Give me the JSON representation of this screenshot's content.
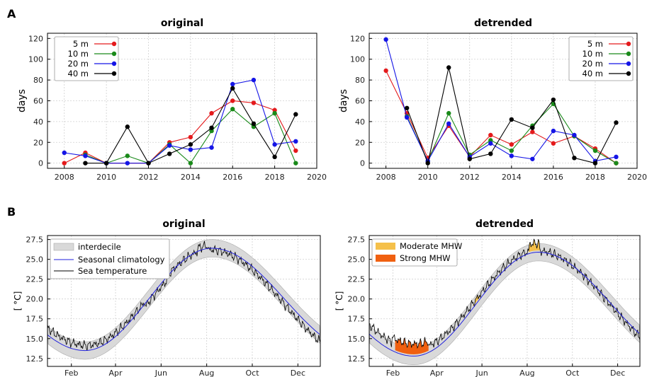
{
  "panel_labels": {
    "A": "A",
    "B": "B"
  },
  "chart_data": [
    {
      "type": "line",
      "title": "original",
      "xlabel": "",
      "ylabel": "days",
      "xlim": [
        2007.2,
        2020
      ],
      "ylim": [
        -5,
        125
      ],
      "xticks": [
        2008,
        2010,
        2012,
        2014,
        2016,
        2018,
        2020
      ],
      "yticks": [
        0,
        20,
        40,
        60,
        80,
        100,
        120
      ],
      "legend_position": "top-left",
      "series": [
        {
          "name": "5 m",
          "color": "#e41a1c",
          "x": [
            2008,
            2009,
            2010,
            2011,
            2012,
            2013,
            2014,
            2015,
            2016,
            2017,
            2018,
            2019
          ],
          "y": [
            0,
            10,
            0,
            null,
            0,
            20,
            25,
            48,
            60,
            58,
            51,
            12
          ]
        },
        {
          "name": "10 m",
          "color": "#1a8a1a",
          "x": [
            2009,
            2010,
            2011,
            2012,
            2013,
            2014,
            2015,
            2016,
            2017,
            2018,
            2019
          ],
          "y": [
            8,
            0,
            7,
            0,
            18,
            0,
            31,
            52,
            35,
            48,
            0
          ]
        },
        {
          "name": "20 m",
          "color": "#1515e6",
          "x": [
            2008,
            2009,
            2010,
            2011,
            2012,
            2013,
            2014,
            2015,
            2016,
            2017,
            2018,
            2019
          ],
          "y": [
            10,
            7,
            0,
            0,
            0,
            17,
            13,
            15,
            76,
            80,
            18,
            21
          ]
        },
        {
          "name": "40 m",
          "color": "#000000",
          "x": [
            2009,
            2010,
            2011,
            2012,
            2013,
            2014,
            2015,
            2016,
            2017,
            2018,
            2019
          ],
          "y": [
            0,
            0,
            35,
            0,
            9,
            18,
            34,
            72,
            38,
            6,
            47
          ]
        }
      ]
    },
    {
      "type": "line",
      "title": "detrended",
      "xlabel": "",
      "ylabel": "days",
      "xlim": [
        2007.2,
        2020
      ],
      "ylim": [
        -5,
        125
      ],
      "xticks": [
        2008,
        2010,
        2012,
        2014,
        2016,
        2018,
        2020
      ],
      "yticks": [
        0,
        20,
        40,
        60,
        80,
        100,
        120
      ],
      "legend_position": "top-right",
      "series": [
        {
          "name": "5 m",
          "color": "#e41a1c",
          "x": [
            2008,
            2009,
            2010,
            2011,
            2012,
            2013,
            2014,
            2015,
            2016,
            2017,
            2018,
            2019
          ],
          "y": [
            89,
            48,
            5,
            36,
            6,
            27,
            18,
            30,
            19,
            26,
            14,
            0
          ]
        },
        {
          "name": "10 m",
          "color": "#1a8a1a",
          "x": [
            2009,
            2010,
            2011,
            2012,
            2013,
            2014,
            2015,
            2016,
            2017,
            2018,
            2019
          ],
          "y": [
            45,
            2,
            48,
            8,
            22,
            12,
            36,
            57,
            26,
            12,
            0
          ]
        },
        {
          "name": "20 m",
          "color": "#1515e6",
          "x": [
            2008,
            2009,
            2010,
            2011,
            2012,
            2013,
            2014,
            2015,
            2016,
            2017,
            2018,
            2019
          ],
          "y": [
            119,
            44,
            2,
            38,
            6,
            19,
            7,
            4,
            31,
            27,
            2,
            6
          ]
        },
        {
          "name": "40 m",
          "color": "#000000",
          "x": [
            2009,
            2010,
            2011,
            2012,
            2013,
            2014,
            2015,
            2016,
            2017,
            2018,
            2019
          ],
          "y": [
            53,
            0,
            92,
            4,
            9,
            42,
            34,
            61,
            5,
            0,
            39
          ]
        }
      ]
    },
    {
      "type": "area",
      "title": "original",
      "xlabel": "",
      "ylabel": "[ °C]",
      "xlim": [
        0,
        365
      ],
      "ylim": [
        11.5,
        28.0
      ],
      "xtick_labels": [
        "Feb",
        "Apr",
        "Jun",
        "Aug",
        "Oct",
        "Dec"
      ],
      "xtick_days": [
        32,
        91,
        152,
        213,
        274,
        335
      ],
      "yticks": [
        12.5,
        15.0,
        17.5,
        20.0,
        22.5,
        25.0,
        27.5
      ],
      "ytick_labels": [
        "12.5",
        "15.0",
        "17.5",
        "20.0",
        "22.5",
        "25.0",
        "27.5"
      ],
      "legend_position": "top-left",
      "legend": [
        "interdecile",
        "Seasonal climatology",
        "Sea temperature"
      ],
      "climatology": {
        "min": 13.5,
        "min_day": 50,
        "max": 26.4,
        "max_day": 220,
        "color": "#2222dd"
      },
      "interdecile_halfwidth": 1.1,
      "band_color": "#d9d9d9",
      "sea_temperature_color": "#000000",
      "sea_temperature_offset": {
        "start": 1.0,
        "end": -1.0,
        "mhw_peak": 0
      }
    },
    {
      "type": "area",
      "title": "detrended",
      "xlabel": "",
      "ylabel": "[ °C]",
      "xlim": [
        0,
        365
      ],
      "ylim": [
        11.5,
        28.0
      ],
      "xtick_labels": [
        "Feb",
        "Apr",
        "Jun",
        "Aug",
        "Oct",
        "Dec"
      ],
      "xtick_days": [
        32,
        91,
        152,
        213,
        274,
        335
      ],
      "yticks": [
        12.5,
        15.0,
        17.5,
        20.0,
        22.5,
        25.0,
        27.5
      ],
      "ytick_labels": [
        "12.5",
        "15.0",
        "17.5",
        "20.0",
        "22.5",
        "25.0",
        "27.5"
      ],
      "legend_position": "top-left",
      "legend": [
        "Moderate MHW",
        "Strong MHW"
      ],
      "climatology": {
        "min": 12.8,
        "min_day": 60,
        "max": 25.9,
        "max_day": 228,
        "color": "#2222dd"
      },
      "interdecile_halfwidth": 1.1,
      "band_color": "#d9d9d9",
      "sea_temperature_color": "#000000",
      "moderate_color": "#f5c04a",
      "strong_color": "#f06010"
    }
  ]
}
